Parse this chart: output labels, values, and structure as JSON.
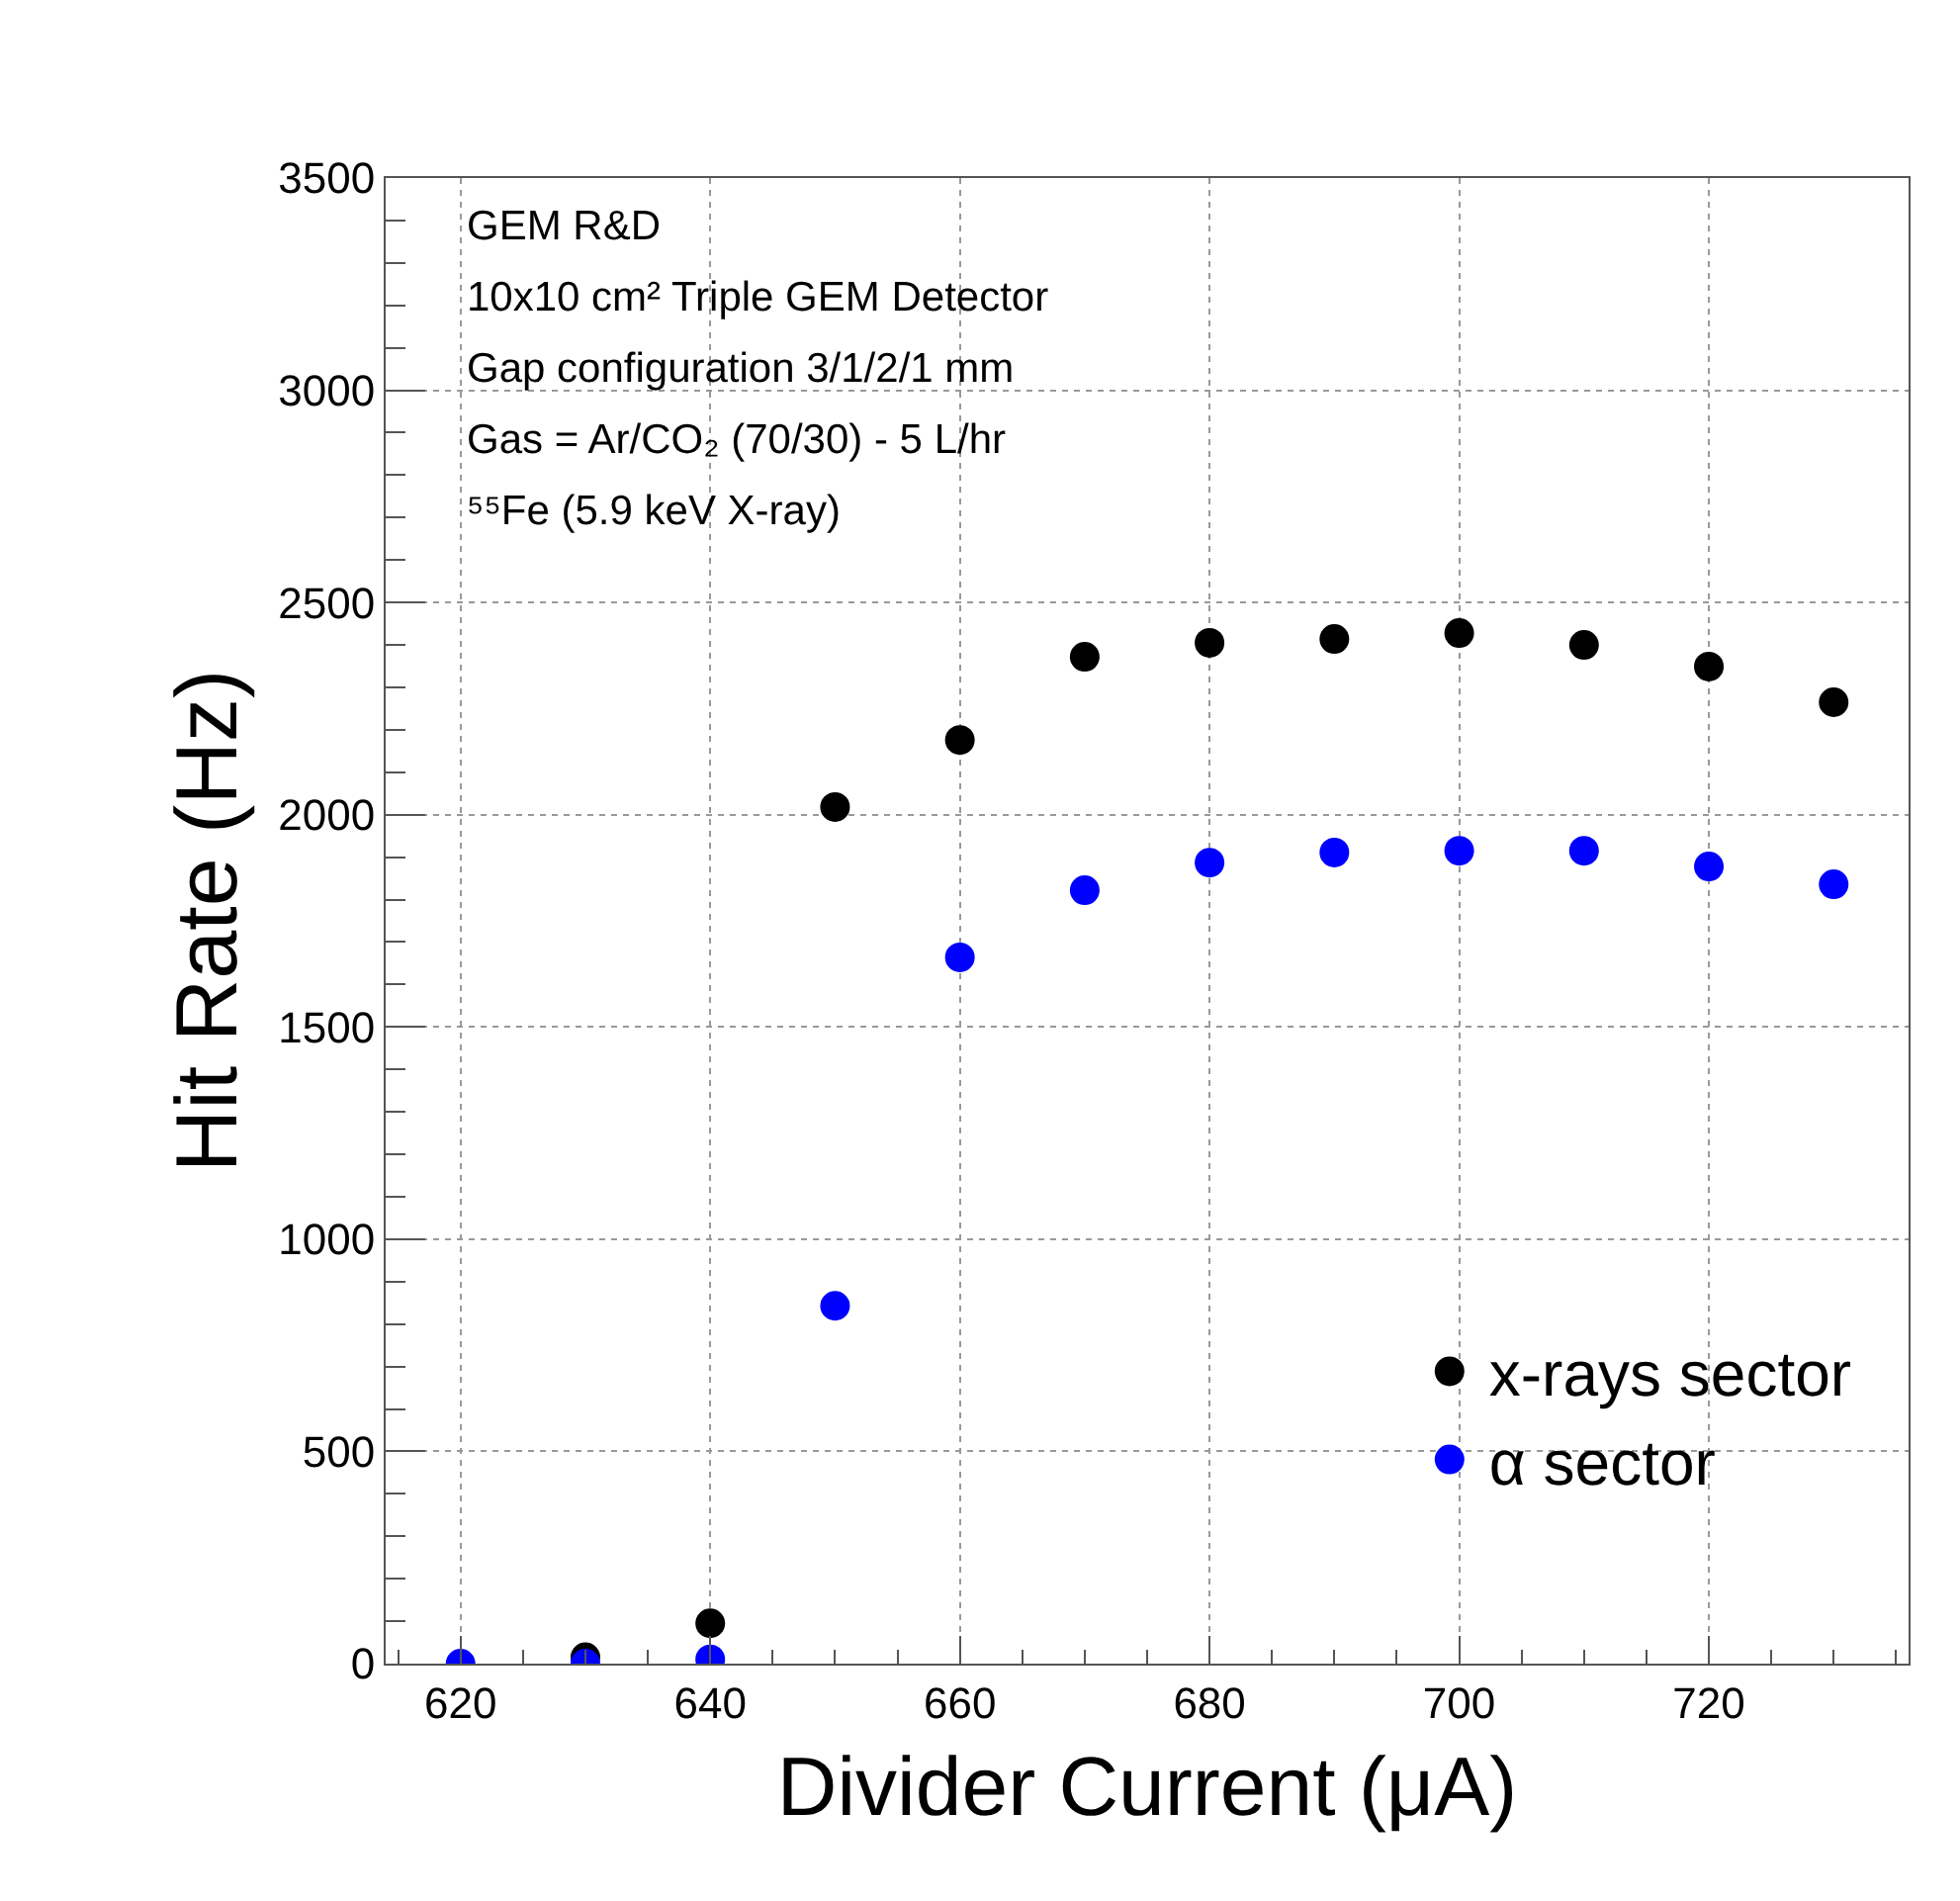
{
  "chart_data": {
    "type": "scatter",
    "xlabel": "Divider Current (μA)",
    "ylabel": "Hit Rate (Hz)",
    "annotations": [
      "GEM R&D",
      "10x10 cm² Triple GEM Detector",
      "Gap configuration 3/1/2/1 mm",
      "Gas = Ar/CO₂ (70/30) - 5 L/hr",
      "⁵⁵Fe (5.9 keV X-ray)"
    ],
    "x": [
      620,
      630,
      640,
      650,
      660,
      670,
      680,
      690,
      700,
      710,
      720,
      730
    ],
    "series": [
      {
        "name": "x-rays sector",
        "color": "#000000",
        "values": [
          null,
          15,
          95,
          2018,
          2176,
          2372,
          2405,
          2414,
          2428,
          2400,
          2349,
          2265
        ]
      },
      {
        "name": "α sector",
        "color": "#0000ff",
        "values": [
          0,
          0,
          10,
          843,
          1664,
          1822,
          1887,
          1911,
          1915,
          1915,
          1878,
          1836
        ]
      }
    ],
    "xlim": [
      614,
      736
    ],
    "xticks": [
      620,
      640,
      660,
      680,
      700,
      720
    ],
    "ylim": [
      0,
      3500
    ],
    "yticks": [
      0,
      500,
      1000,
      1500,
      2000,
      2500,
      3000,
      3500
    ],
    "grid": true,
    "legend": "bottom right",
    "marker": "circle"
  }
}
